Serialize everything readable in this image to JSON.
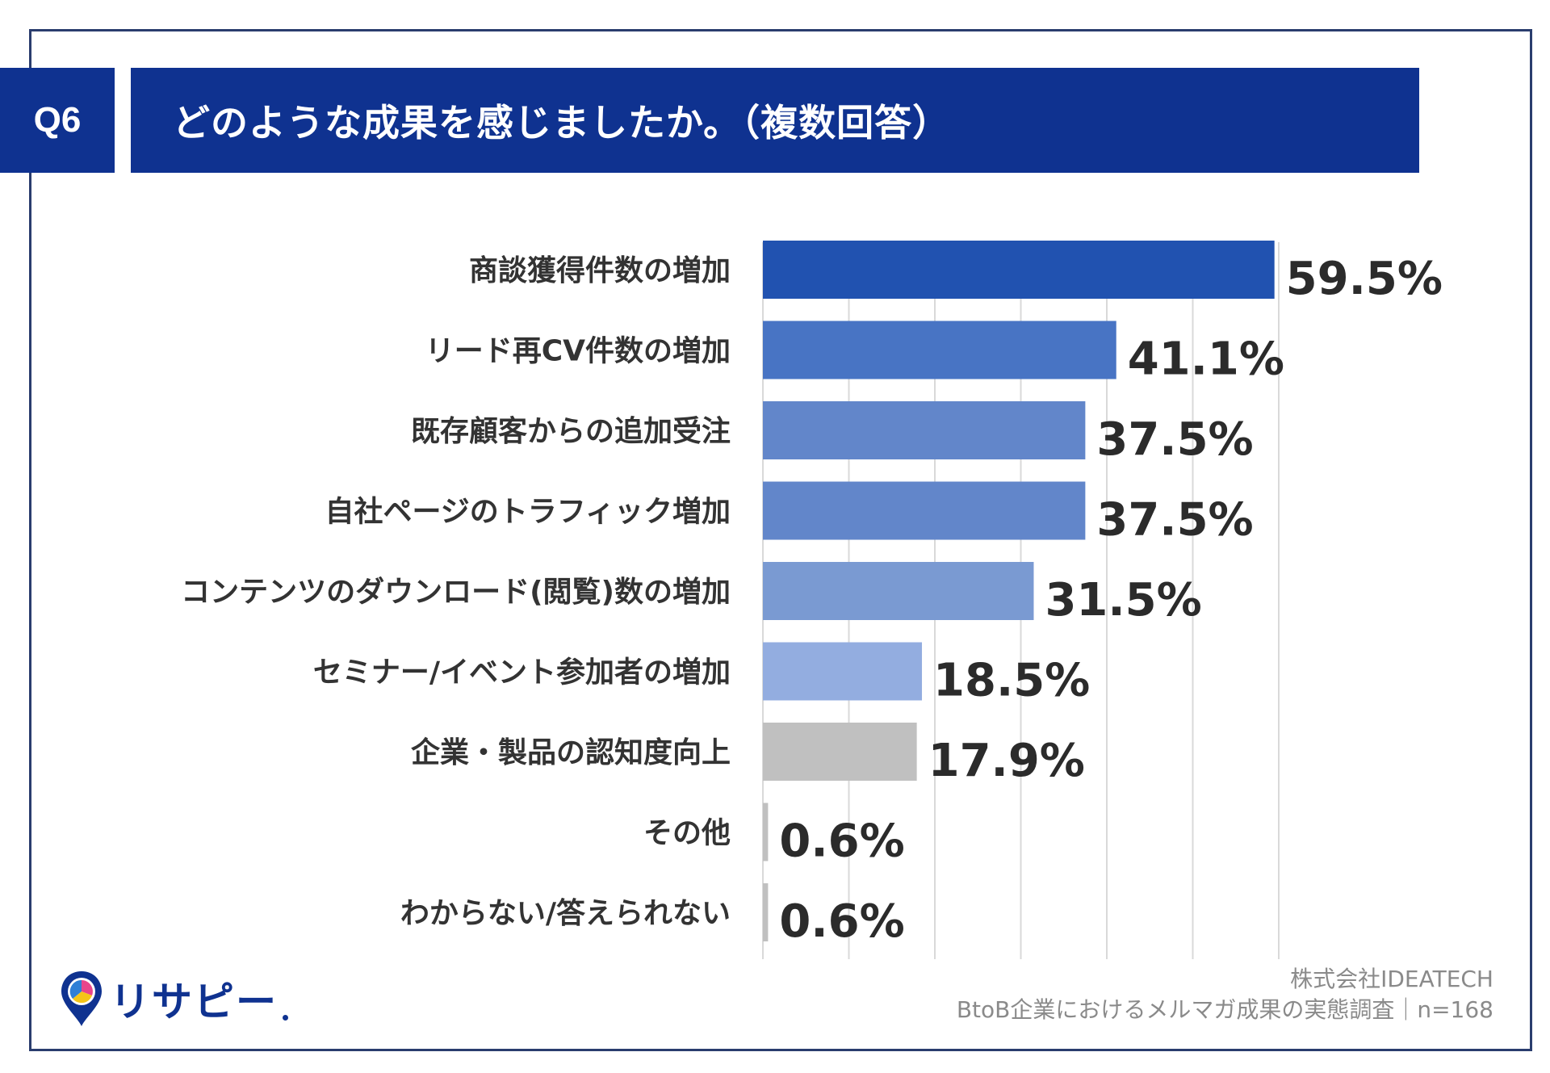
{
  "header": {
    "badge": "Q6",
    "title": "どのような成果を感じましたか。（複数回答）"
  },
  "chart_data": {
    "type": "bar",
    "orientation": "horizontal",
    "title": "どのような成果を感じましたか。（複数回答）",
    "categories": [
      "商談獲得件数の増加",
      "リード再CV件数の増加",
      "既存顧客からの追加受注",
      "自社ページのトラフィック増加",
      "コンテンツのダウンロード(閲覧)数の増加",
      "セミナー/イベント参加者の増加",
      "企業・製品の認知度向上",
      "その他",
      "わからない/答えられない"
    ],
    "values": [
      59.5,
      41.1,
      37.5,
      37.5,
      31.5,
      18.5,
      17.9,
      0.6,
      0.6
    ],
    "value_labels": [
      "59.5%",
      "41.1%",
      "37.5%",
      "37.5%",
      "31.5%",
      "18.5%",
      "17.9%",
      "0.6%",
      "0.6%"
    ],
    "bar_colors": [
      "#2152b0",
      "#4874c4",
      "#6286ca",
      "#6286ca",
      "#7a9ad2",
      "#93ade0",
      "#c0c0c0",
      "#c0c0c0",
      "#c0c0c0"
    ],
    "xlim": [
      0,
      60
    ],
    "grid": true,
    "xlabel": "",
    "ylabel": ""
  },
  "footer": {
    "logo": "リサピー",
    "source_line1": "株式会社IDEATECH",
    "source_line2": "BtoB企業におけるメルマガ成果の実態調査｜n=168"
  },
  "colors": {
    "navy": "#0f3290",
    "frame": "#2a3d6e",
    "logo_pink": "#e8458b",
    "logo_yellow": "#f5c518"
  }
}
